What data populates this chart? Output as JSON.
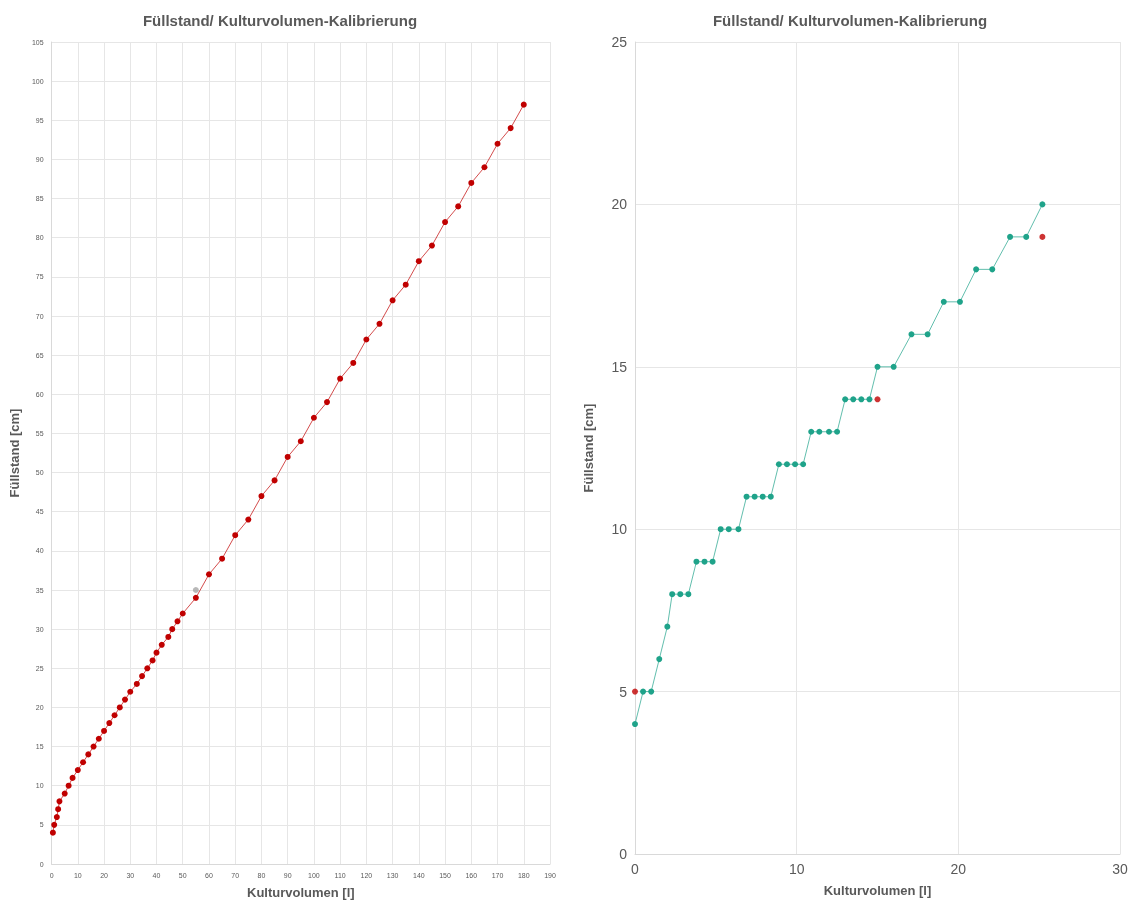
{
  "chart_data": [
    {
      "type": "line",
      "title": "Füllstand/ Kulturvolumen-Kalibrierung",
      "xlabel": "Kulturvolumen [l]",
      "ylabel": "Füllstand [cm]",
      "xlim": [
        0,
        190
      ],
      "xticks": [
        0,
        10,
        20,
        30,
        40,
        50,
        60,
        70,
        80,
        90,
        100,
        110,
        120,
        130,
        140,
        150,
        160,
        170,
        180,
        190
      ],
      "ylim": [
        0,
        105
      ],
      "yticks": [
        0,
        5,
        10,
        15,
        20,
        25,
        30,
        35,
        40,
        45,
        50,
        55,
        60,
        65,
        70,
        75,
        80,
        85,
        90,
        95,
        100,
        105
      ],
      "grid": true,
      "series": [
        {
          "type": "line",
          "color": "#c00000",
          "marker": "circle",
          "x": [
            0.5,
            1,
            2,
            2.5,
            3,
            5,
            6.5,
            8,
            10,
            12,
            14,
            16,
            18,
            20,
            22,
            24,
            26,
            28,
            30,
            32.5,
            34.5,
            36.5,
            38.5,
            40,
            42,
            44.5,
            46,
            48,
            50,
            55,
            60,
            65,
            70,
            75,
            80,
            85,
            90,
            95,
            100,
            105,
            110,
            115,
            120,
            125,
            130,
            135,
            140,
            145,
            150,
            155,
            160,
            165,
            170,
            175,
            180
          ],
          "values": [
            4,
            5,
            6,
            7,
            8,
            9,
            10,
            11,
            12,
            13,
            14,
            15,
            16,
            17,
            18,
            19,
            20,
            21,
            22,
            23,
            24,
            25,
            26,
            27,
            28,
            29,
            30,
            31,
            32,
            34,
            37,
            39,
            42,
            44,
            47,
            49,
            52,
            54,
            57,
            59,
            62,
            64,
            67,
            69,
            72,
            74,
            77,
            79,
            82,
            84,
            87,
            89,
            92,
            94,
            97
          ]
        },
        {
          "type": "scatter",
          "color": "#a6a6a6",
          "marker": "circle",
          "x": [
            55
          ],
          "values": [
            35
          ]
        }
      ]
    },
    {
      "type": "line",
      "title": "Füllstand/ Kulturvolumen-Kalibrierung",
      "xlabel": "Kulturvolumen [l]",
      "ylabel": "Füllstand [cm]",
      "xlim": [
        0,
        30
      ],
      "xticks": [
        0,
        10,
        20,
        30
      ],
      "ylim": [
        0,
        25
      ],
      "yticks": [
        0,
        5,
        10,
        15,
        20,
        25
      ],
      "grid": true,
      "series": [
        {
          "type": "line",
          "color": "#1fa38a",
          "marker": "circle",
          "x": [
            0,
            0.5,
            1,
            1.5,
            2,
            2.3,
            2.8,
            3.3,
            3.8,
            4.3,
            4.8,
            5.3,
            5.8,
            6.4,
            6.9,
            7.4,
            7.9,
            8.4,
            8.9,
            9.4,
            9.9,
            10.4,
            10.9,
            11.4,
            12,
            12.5,
            13,
            13.5,
            14,
            14.5,
            15,
            16,
            17.1,
            18.1,
            19.1,
            20.1,
            21.1,
            22.1,
            23.2,
            24.2,
            25.2
          ],
          "values": [
            4,
            5,
            5,
            6,
            7,
            8,
            8,
            8,
            9,
            9,
            9,
            10,
            10,
            10,
            11,
            11,
            11,
            11,
            12,
            12,
            12,
            12,
            13,
            13,
            13,
            13,
            14,
            14,
            14,
            14,
            15,
            15,
            16,
            16,
            17,
            17,
            18,
            18,
            19,
            19,
            20
          ]
        },
        {
          "type": "scatter",
          "color": "#c00000",
          "marker": "circle",
          "x": [
            0,
            15,
            25.2
          ],
          "values": [
            5,
            14,
            19
          ]
        }
      ]
    }
  ]
}
